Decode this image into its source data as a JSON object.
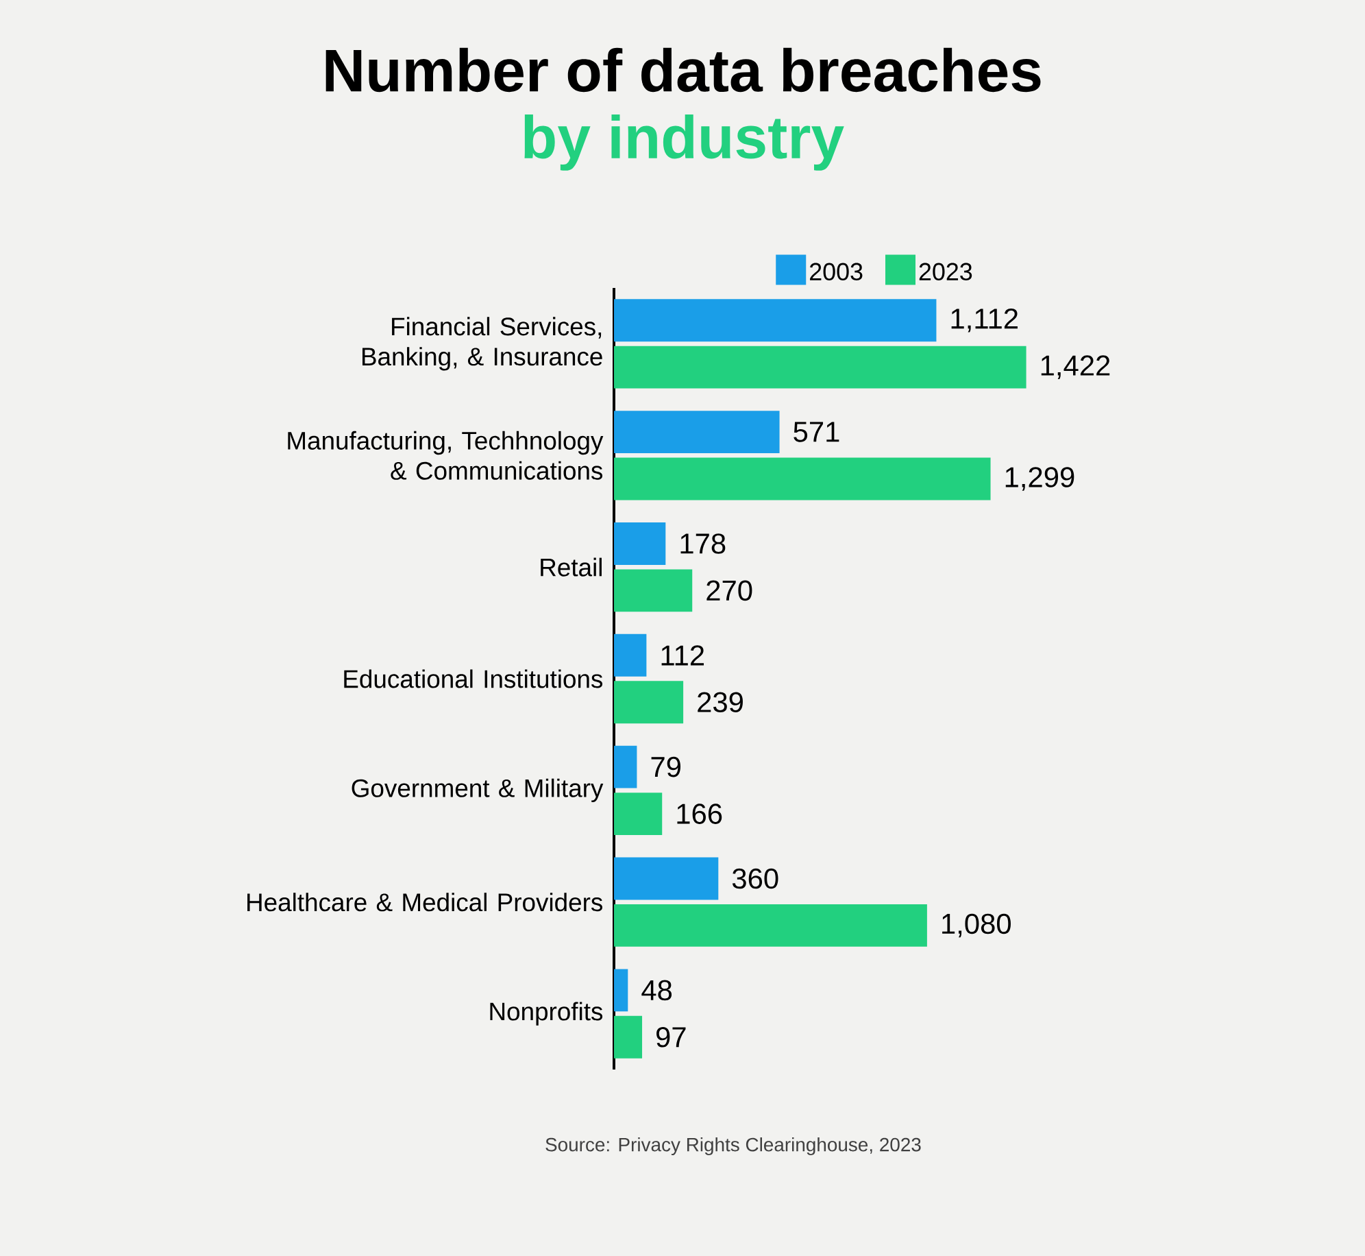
{
  "chart_data": {
    "type": "bar",
    "orientation": "horizontal",
    "title": "Number of data breaches",
    "subtitle": "by industry",
    "categories": [
      "Financial Services, Banking, & Insurance",
      "Manufacturing, Techhnology & Communications",
      "Retail",
      "Educational Institutions",
      "Government & Military",
      "Healthcare & Medical Providers",
      "Nonprofits"
    ],
    "series": [
      {
        "name": "2003",
        "color": "#1a9ee8",
        "values": [
          1112,
          571,
          178,
          112,
          79,
          360,
          48
        ],
        "value_labels": [
          "1,112",
          "571",
          "178",
          "112",
          "79",
          "360",
          "48"
        ]
      },
      {
        "name": "2023",
        "color": "#22d07f",
        "values": [
          1422,
          1299,
          270,
          239,
          166,
          1080,
          97
        ],
        "value_labels": [
          "1,422",
          "1,299",
          "270",
          "239",
          "166",
          "1,080",
          "97"
        ]
      }
    ],
    "legend": "top",
    "tick_labels": "y",
    "annotations": [
      "Source: Privacy Rights Clearinghouse, 2023"
    ]
  }
}
